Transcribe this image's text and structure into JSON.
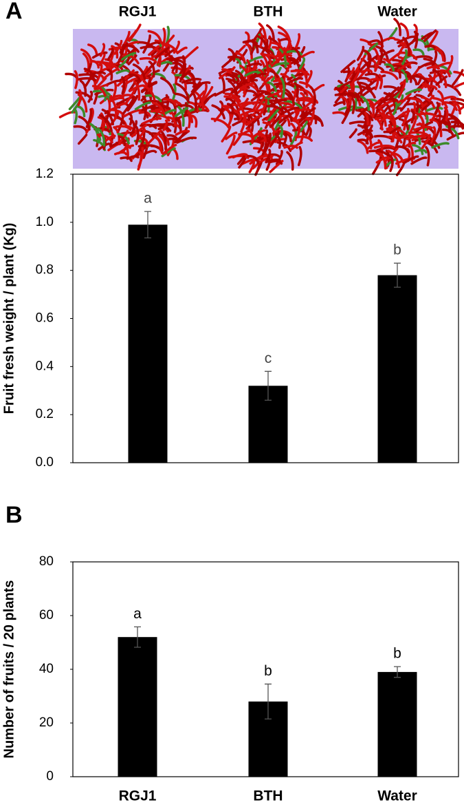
{
  "chart_data": [
    {
      "type": "bar",
      "panel": "A",
      "categories": [
        "RGJ1",
        "BTH",
        "Water"
      ],
      "ylabel": "Fruit fresh weight / plant (Kg)",
      "values": [
        0.99,
        0.32,
        0.78
      ],
      "errors": [
        0.055,
        0.06,
        0.05
      ],
      "annotations": [
        "a",
        "c",
        "b"
      ],
      "color": "#000000",
      "ylim": [
        0,
        1.2
      ],
      "yticks": [
        {
          "value": 0,
          "label": "0.0"
        },
        0.2,
        0.4,
        0.6,
        0.8,
        {
          "value": 1,
          "label": "1.0"
        },
        1.2
      ]
    },
    {
      "type": "bar",
      "panel": "B",
      "categories": [
        "RGJ1",
        "BTH",
        "Water"
      ],
      "ylabel": "Number of fruits / 20 plants",
      "values": [
        52,
        28,
        39
      ],
      "errors": [
        3.8,
        6.5,
        2
      ],
      "annotations": [
        "a",
        "b",
        "b"
      ],
      "color": "#000000",
      "ylim": [
        0,
        80
      ],
      "yticks": [
        0,
        20,
        40,
        60,
        80
      ]
    }
  ]
}
